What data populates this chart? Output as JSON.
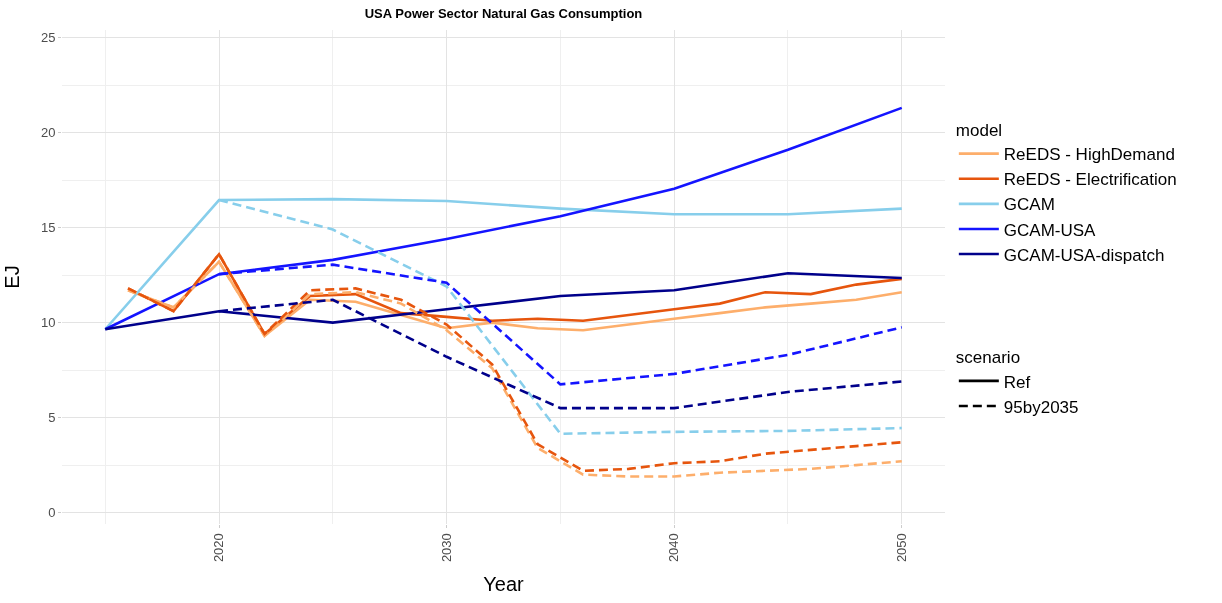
{
  "chart_data": {
    "type": "line",
    "title": "USA Power Sector Natural Gas Consumption",
    "xlabel": "Year",
    "ylabel": "EJ",
    "legend_title": [
      "model",
      "scenario"
    ],
    "series": [
      {
        "name": "ReEDS - HighDemand",
        "color": "#fdae6b",
        "line_style": "solid",
        "x": [
          2016,
          2018,
          2020,
          2022,
          2024,
          2026,
          2028,
          2030,
          2032,
          2034,
          2036,
          2038,
          2040,
          2042,
          2044,
          2046,
          2048,
          2050
        ],
        "values": [
          11.7,
          10.8,
          13.2,
          9.3,
          11.2,
          11.1,
          10.4,
          9.7,
          10.0,
          9.7,
          9.6,
          9.9,
          10.2,
          10.5,
          10.8,
          11.0,
          11.2,
          11.6
        ]
      },
      {
        "name": "ReEDS - Electrification",
        "color": "#e6550d",
        "line_style": "solid",
        "x": [
          2016,
          2018,
          2020,
          2022,
          2024,
          2026,
          2028,
          2030,
          2032,
          2034,
          2036,
          2038,
          2040,
          2042,
          2044,
          2046,
          2048,
          2050
        ],
        "values": [
          11.8,
          10.6,
          13.6,
          9.4,
          11.4,
          11.5,
          10.5,
          10.3,
          10.1,
          10.2,
          10.1,
          10.4,
          10.7,
          11.0,
          11.6,
          11.5,
          12.0,
          12.3
        ]
      },
      {
        "name": "GCAM",
        "color": "#87ceeb",
        "line_style": "solid",
        "x": [
          2015,
          2020,
          2025,
          2030,
          2035,
          2040,
          2045,
          2050
        ],
        "values": [
          9.65,
          16.45,
          16.5,
          16.4,
          16.0,
          15.7,
          15.7,
          16.0
        ]
      },
      {
        "name": "GCAM-USA",
        "color": "#1414ff",
        "line_style": "solid",
        "x": [
          2015,
          2020,
          2025,
          2030,
          2035,
          2040,
          2045,
          2050
        ],
        "values": [
          9.65,
          12.55,
          13.3,
          14.4,
          15.6,
          17.05,
          19.1,
          21.3
        ]
      },
      {
        "name": "GCAM-USA-dispatch",
        "color": "#00008b",
        "line_style": "solid",
        "x": [
          2015,
          2020,
          2025,
          2030,
          2035,
          2040,
          2045,
          2050
        ],
        "values": [
          9.65,
          10.6,
          10.0,
          10.7,
          11.4,
          11.7,
          12.6,
          12.35
        ]
      },
      {
        "color": "#fdae6b",
        "line_style": "dashed",
        "x": [
          2016,
          2018,
          2020,
          2022,
          2024,
          2026,
          2028,
          2030,
          2032,
          2034,
          2036,
          2038,
          2040,
          2042,
          2044,
          2046,
          2048,
          2050
        ],
        "values": [
          11.7,
          10.8,
          13.2,
          9.3,
          11.5,
          11.6,
          11.0,
          9.6,
          7.6,
          3.4,
          2.0,
          1.9,
          1.9,
          2.1,
          2.2,
          2.3,
          2.5,
          2.7
        ]
      },
      {
        "color": "#e6550d",
        "line_style": "dashed",
        "x": [
          2016,
          2018,
          2020,
          2022,
          2024,
          2026,
          2028,
          2030,
          2032,
          2034,
          2036,
          2038,
          2040,
          2042,
          2044,
          2046,
          2048,
          2050
        ],
        "values": [
          11.8,
          10.6,
          13.6,
          9.4,
          11.7,
          11.8,
          11.2,
          9.9,
          7.8,
          3.6,
          2.2,
          2.3,
          2.6,
          2.7,
          3.1,
          3.3,
          3.5,
          3.7
        ]
      },
      {
        "color": "#87ceeb",
        "line_style": "dashed",
        "x": [
          2020,
          2025,
          2030,
          2035,
          2040,
          2045,
          2050
        ],
        "values": [
          16.45,
          14.9,
          11.9,
          4.15,
          4.25,
          4.3,
          4.45
        ]
      },
      {
        "color": "#1414ff",
        "line_style": "dashed",
        "x": [
          2020,
          2025,
          2030,
          2035,
          2040,
          2045,
          2050
        ],
        "values": [
          12.55,
          13.05,
          12.1,
          6.75,
          7.3,
          8.3,
          9.75
        ]
      },
      {
        "color": "#00008b",
        "line_style": "dashed",
        "x": [
          2020,
          2025,
          2030,
          2035,
          2040,
          2045,
          2050
        ],
        "values": [
          10.6,
          11.2,
          8.2,
          5.5,
          5.5,
          6.35,
          6.9
        ]
      },
      {
        "name": "Ref",
        "color": "#000000",
        "line_style": "solid",
        "values": [
          null
        ]
      },
      {
        "name": "95by2035",
        "color": "#000000",
        "line_style": "dashed",
        "values": [
          null
        ]
      }
    ],
    "xlim": [
      2013.1,
      2051.9
    ],
    "xticks": [
      2020,
      2030,
      2040,
      2050
    ],
    "ylim": [
      -0.6,
      25.4
    ],
    "yticks": [
      0,
      5,
      10,
      15,
      20,
      25
    ],
    "grid": true,
    "legend": "right",
    "marker": "none"
  }
}
